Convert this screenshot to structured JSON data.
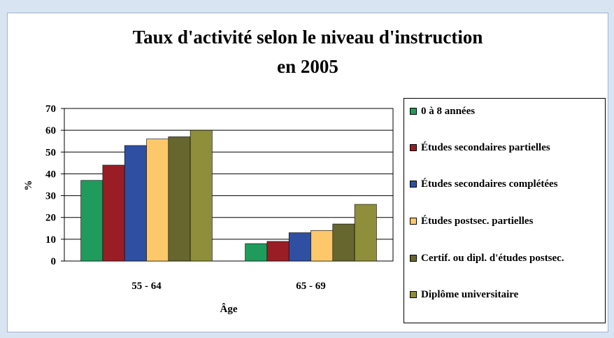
{
  "chart_data": {
    "type": "bar",
    "title": "Taux d'activité selon le niveau d'instruction",
    "subtitle": "en 2005",
    "x_label": "Âge",
    "y_label": "%",
    "categories": [
      "55 - 64",
      "65 - 69"
    ],
    "series": [
      {
        "name": "0 à 8 années",
        "color": "#1f9b5c",
        "values": [
          37,
          8
        ]
      },
      {
        "name": "Études secondaires partielles",
        "color": "#9a1d26",
        "values": [
          44,
          9
        ]
      },
      {
        "name": "Études secondaires complétées",
        "color": "#2f4fa2",
        "values": [
          53,
          13
        ]
      },
      {
        "name": "Études postsec. partielles",
        "color": "#fcc86a",
        "values": [
          56,
          14
        ]
      },
      {
        "name": "Certif. ou dipl. d'études postsec.",
        "color": "#66662f",
        "values": [
          57,
          17
        ]
      },
      {
        "name": "Diplôme universitaire",
        "color": "#8e8e3b",
        "values": [
          60,
          26
        ]
      }
    ],
    "ylim": [
      0,
      70
    ],
    "yticks": [
      0,
      10,
      20,
      30,
      40,
      50,
      60,
      70
    ],
    "grid": true,
    "legend": "right"
  }
}
